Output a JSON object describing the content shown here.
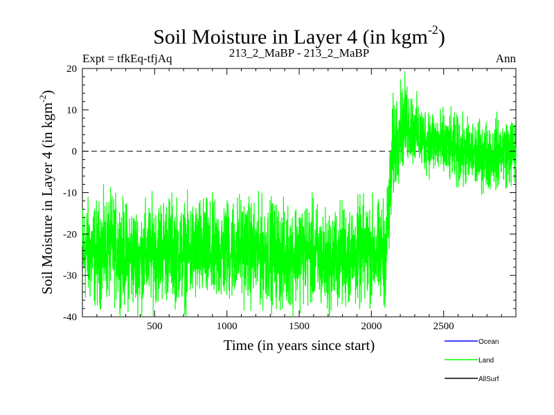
{
  "chart_data": {
    "type": "line",
    "title": "Soil Moisture in Layer 4 (in kgm",
    "title_sup": "-2",
    "title_close": ")",
    "subtitle_left": "Expt = tfkEq-tfjAq",
    "subtitle_center": "213_2_MaBP - 213_2_MaBP",
    "subtitle_right": "Ann",
    "xlabel": "Time (in years since start)",
    "ylabel": "Soil Moisture in Layer 4 (in kgm",
    "ylabel_sup": "-2",
    "ylabel_close": ")",
    "xlim": [
      0,
      3000
    ],
    "ylim": [
      -40,
      20
    ],
    "xticks": [
      500,
      1000,
      1500,
      2000,
      2500
    ],
    "yticks": [
      -40,
      -30,
      -20,
      -10,
      0,
      10,
      20
    ],
    "zero_line": "dashed",
    "grid": false,
    "legend_position": "bottom-right",
    "legend": [
      {
        "name": "Ocean",
        "color": "#0000ff"
      },
      {
        "name": "Land",
        "color": "#00ff00"
      },
      {
        "name": "AllSurf",
        "color": "#000000"
      }
    ],
    "series": [
      {
        "name": "Land",
        "color": "#00ff00",
        "x": [
          0,
          100,
          200,
          300,
          400,
          500,
          600,
          700,
          800,
          900,
          1000,
          1100,
          1200,
          1300,
          1400,
          1500,
          1600,
          1700,
          1800,
          1900,
          2000,
          2050,
          2100,
          2130,
          2150,
          2200,
          2250,
          2300,
          2350,
          2400,
          2450,
          2500,
          2600,
          2700,
          2800,
          2900,
          3000
        ],
        "y": [
          -24,
          -25,
          -23,
          -25,
          -26,
          -24,
          -23,
          -25,
          -24,
          -25,
          -24,
          -23,
          -25,
          -24,
          -26,
          -24,
          -25,
          -27,
          -25,
          -25,
          -24,
          -25,
          -24,
          -10,
          0,
          6,
          7,
          5,
          3,
          3,
          2,
          1,
          0,
          -1,
          -1,
          0,
          0
        ],
        "noise_amplitude": [
          6,
          6,
          6,
          6,
          6,
          6,
          6,
          6,
          6,
          6,
          6,
          6,
          6,
          6,
          6,
          6,
          6,
          6,
          6,
          6,
          6,
          6,
          6,
          6,
          6,
          5,
          5,
          4,
          4,
          4,
          4,
          4,
          4,
          4,
          4,
          4,
          4
        ]
      }
    ]
  }
}
